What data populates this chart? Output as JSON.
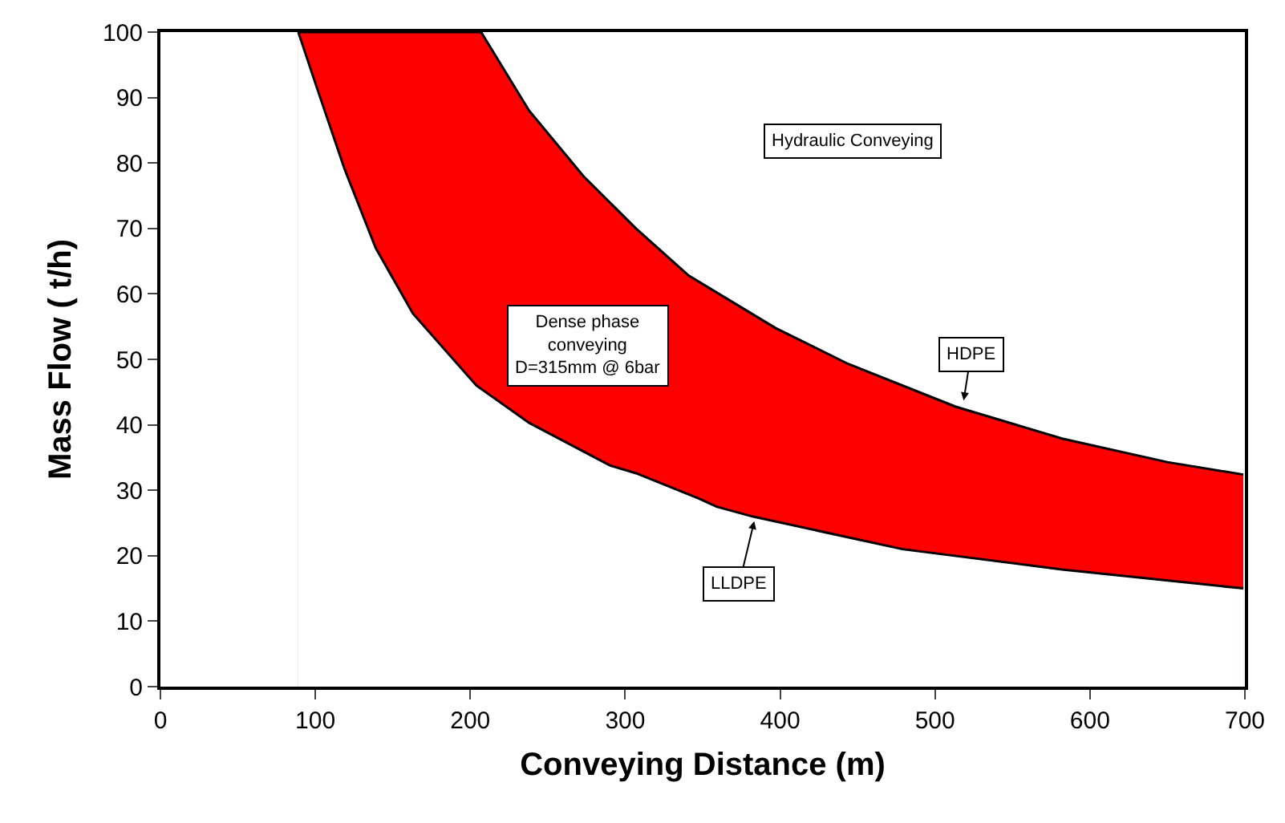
{
  "chart_data": {
    "type": "area",
    "xlabel": "Conveying Distance (m)",
    "ylabel": "Mass Flow ( t/h)",
    "xlim": [
      0,
      700
    ],
    "xticks": [
      0,
      100,
      200,
      300,
      400,
      500,
      600,
      700
    ],
    "ylim": [
      0,
      100
    ],
    "yticks": [
      0,
      10,
      20,
      30,
      40,
      50,
      60,
      70,
      80,
      90,
      100
    ],
    "grid": false,
    "marker": "none",
    "line_style": "solid",
    "series": [
      {
        "color": "#ff0000",
        "x": [
          89,
          207,
          238,
          273,
          307,
          341,
          397,
          444,
          513,
          582,
          650,
          699
        ],
        "values": [
          100,
          100,
          88,
          78,
          70,
          62.8,
          54.8,
          49.3,
          42.8,
          37.9,
          34.3,
          32.4
        ]
      },
      {
        "type": "line",
        "color": "#000000",
        "x": [
          89,
          101,
          119,
          139,
          163,
          204,
          238,
          290,
          307,
          348,
          359,
          382,
          479,
          582,
          699
        ],
        "values": [
          100,
          91.5,
          79,
          67,
          57,
          46,
          40.3,
          33.8,
          32.6,
          28.7,
          27.5,
          26,
          21,
          17.9,
          15
        ]
      }
    ],
    "annotations": [
      "Hydraulic Conveying",
      "Dense phase\nconveying\nD=315mm @ 6bar",
      {
        "text": "HDPE",
        "x": 518,
        "y": 43
      },
      {
        "text": "LLDPE",
        "x": 384,
        "y": 26
      }
    ]
  }
}
